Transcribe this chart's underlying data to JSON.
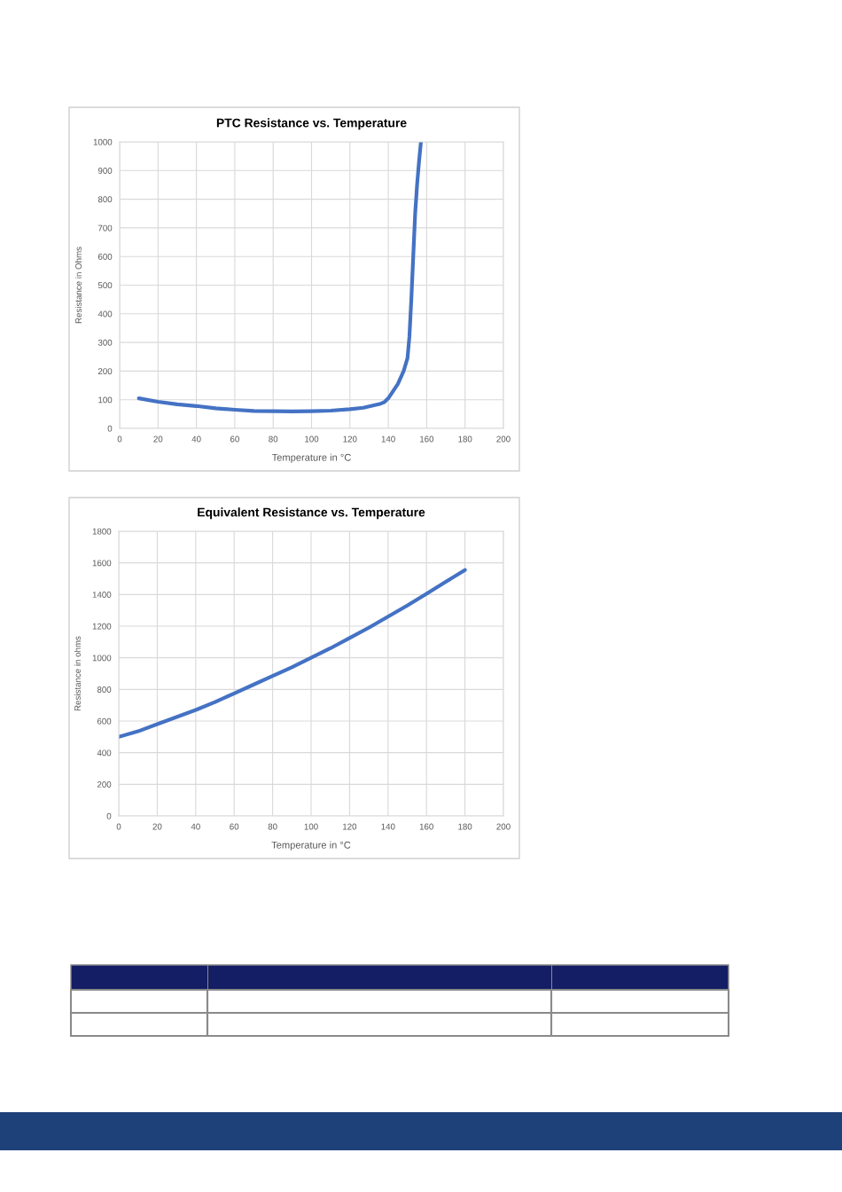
{
  "chart_data": [
    {
      "type": "line",
      "title": "PTC Resistance vs. Temperature",
      "xlabel": "Temperature in °C",
      "ylabel": "Resistance in Ohms",
      "xlim": [
        0,
        200
      ],
      "xticks": [
        0,
        20,
        40,
        60,
        80,
        100,
        120,
        140,
        160,
        180,
        200
      ],
      "ylim": [
        0,
        1000
      ],
      "yticks": [
        0,
        100,
        200,
        300,
        400,
        500,
        600,
        700,
        800,
        900,
        1000
      ],
      "grid": true,
      "marker": "none",
      "line_style": "solid",
      "series": [
        {
          "color": "#4472c4",
          "x": [
            10,
            20,
            30,
            40,
            50,
            60,
            70,
            80,
            90,
            100,
            110,
            120,
            127,
            132,
            136,
            138,
            140,
            142,
            145,
            148,
            150,
            151,
            152,
            153,
            154,
            155,
            156,
            157
          ],
          "values": [
            105,
            93,
            84,
            78,
            70,
            65,
            61,
            60,
            59,
            60,
            62,
            67,
            72,
            80,
            86,
            92,
            105,
            125,
            155,
            200,
            245,
            320,
            450,
            600,
            750,
            850,
            930,
            1000
          ]
        }
      ]
    },
    {
      "type": "line",
      "title": "Equivalent Resistance vs. Temperature",
      "xlabel": "Temperature in °C",
      "ylabel": "Resistance in ohms",
      "xlim": [
        0,
        200
      ],
      "xticks": [
        0,
        20,
        40,
        60,
        80,
        100,
        120,
        140,
        160,
        180,
        200
      ],
      "ylim": [
        0,
        1800
      ],
      "yticks": [
        0,
        200,
        400,
        600,
        800,
        1000,
        1200,
        1400,
        1600,
        1800
      ],
      "grid": true,
      "marker": "none",
      "line_style": "solid",
      "series": [
        {
          "color": "#4472c4",
          "x": [
            0,
            10,
            20,
            30,
            40,
            50,
            60,
            70,
            80,
            90,
            100,
            110,
            120,
            130,
            140,
            150,
            160,
            170,
            180
          ],
          "values": [
            500,
            535,
            580,
            625,
            670,
            720,
            775,
            830,
            885,
            940,
            1000,
            1060,
            1125,
            1190,
            1260,
            1330,
            1405,
            1480,
            1555
          ]
        }
      ]
    }
  ]
}
